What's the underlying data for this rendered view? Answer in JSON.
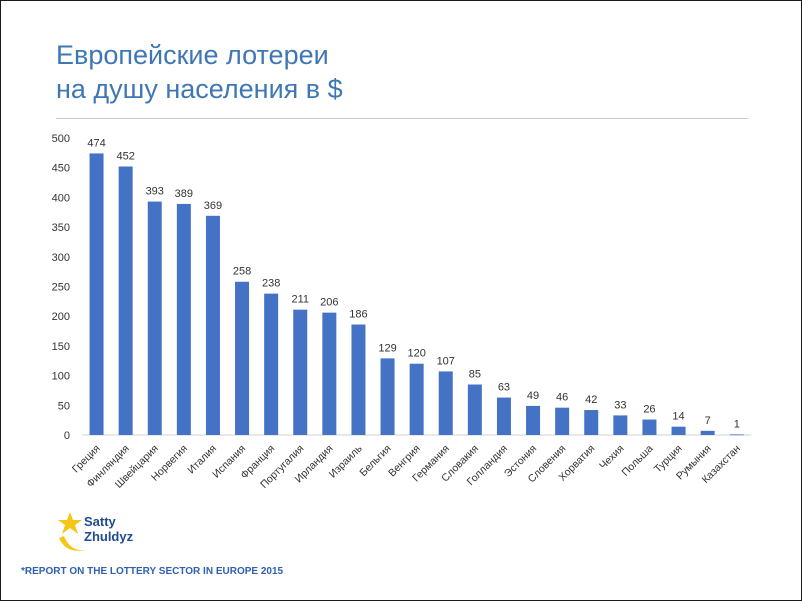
{
  "title_line1": "Европейские лотереи",
  "title_line2": "на душу населения в $",
  "logo": {
    "line1": "Satty",
    "line2": "Zhuldyz"
  },
  "source": "*REPORT ON THE LOTTERY SECTOR IN EUROPE  2015",
  "colors": {
    "title": "#3f77b4",
    "bar": "#4472c4",
    "source": "#2e5fb0",
    "logo_star": "#f5c518",
    "logo_text": "#1e4a92"
  },
  "chart_data": {
    "type": "bar",
    "categories": [
      "Греция",
      "Финляндия",
      "Швейцария",
      "Норвегия",
      "Италия",
      "Испания",
      "Франция",
      "Португалия",
      "Ирландия",
      "Израиль",
      "Бельгия",
      "Венгрия",
      "Германия",
      "Словакия",
      "Голландия",
      "Эстония",
      "Словения",
      "Хорватия",
      "Чехия",
      "Польша",
      "Турция",
      "Румыния",
      "Казахстан"
    ],
    "values": [
      474,
      452,
      393,
      389,
      369,
      258,
      238,
      211,
      206,
      186,
      129,
      120,
      107,
      85,
      63,
      49,
      46,
      42,
      33,
      26,
      14,
      7,
      1
    ],
    "yticks": [
      0,
      50,
      100,
      150,
      200,
      250,
      300,
      350,
      400,
      450,
      500
    ],
    "ylim": [
      0,
      500
    ],
    "grid": false,
    "legend": "none"
  }
}
